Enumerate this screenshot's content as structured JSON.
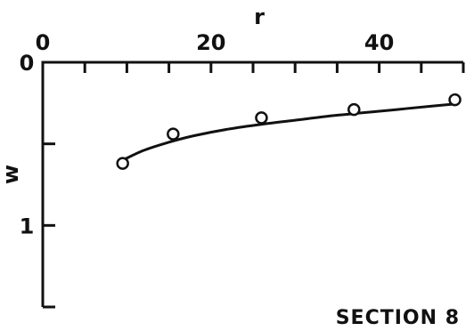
{
  "chart_data": {
    "type": "scatter",
    "title": "",
    "xlabel": "r",
    "ylabel": "w",
    "x_axis_position": "top",
    "y_axis_inverted": true,
    "xlim": [
      0,
      50
    ],
    "ylim": [
      0,
      1.5
    ],
    "x_tick_labels": [
      "0",
      "20",
      "40"
    ],
    "y_tick_labels": [
      "0",
      "1"
    ],
    "grid": false,
    "annotation": "SECTION 8",
    "colors": {
      "ink": "#111111",
      "background": "#ffffff"
    },
    "series": [
      {
        "kind": "points",
        "marker": "open-circle",
        "x": [
          9.5,
          15.5,
          26,
          37,
          49
        ],
        "y": [
          0.62,
          0.44,
          0.34,
          0.29,
          0.23
        ]
      },
      {
        "kind": "fitted-curve",
        "x": [
          9.5,
          12,
          15,
          18,
          22,
          26,
          30,
          34,
          38,
          42,
          46,
          49
        ],
        "y": [
          0.6,
          0.54,
          0.49,
          0.45,
          0.41,
          0.38,
          0.355,
          0.33,
          0.31,
          0.29,
          0.27,
          0.255
        ]
      }
    ]
  }
}
